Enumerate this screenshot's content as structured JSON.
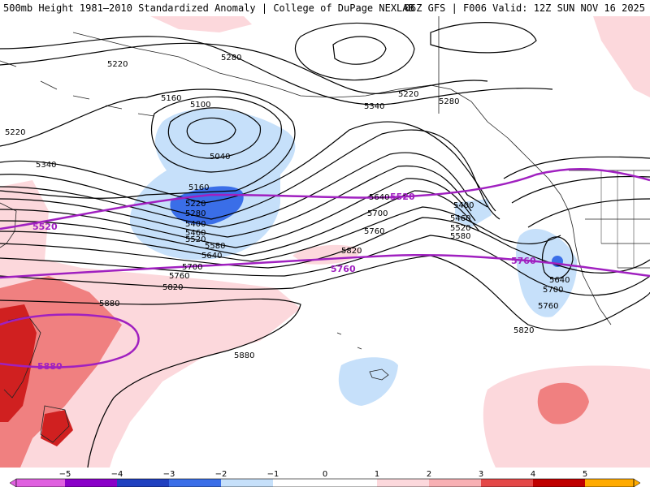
{
  "header": {
    "title": "500mb Height 1981–2010 Standardized Anomaly | College of DuPage NEXLAB",
    "run": "06Z GFS | F006 Valid: 12Z SUN NOV 16 2025"
  },
  "contour_labels": [
    "5220",
    "5280",
    "5160",
    "5100",
    "5220",
    "5340",
    "5040",
    "5160",
    "5220",
    "5280",
    "5400",
    "5460",
    "5520",
    "5580",
    "5640",
    "5700",
    "5760",
    "5820",
    "5880",
    "5880",
    "5220",
    "5280",
    "5340",
    "5400",
    "5460",
    "5520",
    "5580",
    "5640",
    "5700",
    "5760",
    "5820",
    "5640",
    "5700",
    "5760",
    "5820"
  ],
  "highlight_labels": [
    "5520",
    "5520",
    "5760",
    "5760",
    "5880"
  ],
  "colorbar": {
    "ticks": [
      "−5",
      "−4",
      "−3",
      "−2",
      "−1",
      "0",
      "1",
      "2",
      "3",
      "4",
      "5"
    ],
    "colors": [
      "#e060e0",
      "#8a00c8",
      "#2040c0",
      "#3a6ee8",
      "#c6e0fa",
      "#ffffff",
      "#fcd8dc",
      "#f8b0b4",
      "#e44848",
      "#c00000",
      "#ffaa00"
    ]
  },
  "colors": {
    "neg_light": "#c6e0fa",
    "neg_mid": "#3a6ee8",
    "pos_light": "#fcd8dc",
    "pos_mid": "#f08080",
    "pos_dark": "#d02020",
    "highlight": "#a020c0"
  }
}
